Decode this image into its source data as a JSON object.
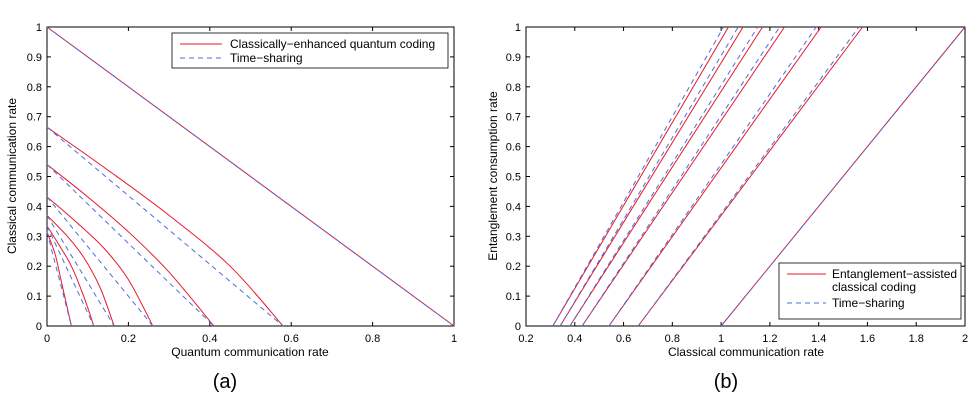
{
  "colors": {
    "series1": "#e8192c",
    "series2": "#4a6fd8",
    "axis": "#000000"
  },
  "chart_data": [
    {
      "type": "line",
      "caption": "(a)",
      "xlabel": "Quantum communication rate",
      "ylabel": "Classical communication rate",
      "xlim": [
        0,
        1
      ],
      "ylim": [
        0,
        1
      ],
      "xticks": [
        "0",
        "0.2",
        "0.4",
        "0.6",
        "0.8",
        "1"
      ],
      "yticks": [
        "0",
        "0.1",
        "0.2",
        "0.3",
        "0.4",
        "0.5",
        "0.6",
        "0.7",
        "0.8",
        "0.9",
        "1"
      ],
      "grid": false,
      "legend_position": "top-right",
      "series": [
        {
          "name": "Classically−enhanced quantum coding",
          "style": "solid",
          "curves": [
            [
              [
                0,
                1
              ],
              [
                1,
                0
              ]
            ],
            [
              [
                0,
                0.665
              ],
              [
                0.15,
                0.521
              ],
              [
                0.3,
                0.37
              ],
              [
                0.45,
                0.2
              ],
              [
                0.58,
                0
              ]
            ],
            [
              [
                0,
                0.54
              ],
              [
                0.1,
                0.432
              ],
              [
                0.2,
                0.315
              ],
              [
                0.3,
                0.18
              ],
              [
                0.41,
                0
              ]
            ],
            [
              [
                0,
                0.432
              ],
              [
                0.07,
                0.35
              ],
              [
                0.14,
                0.26
              ],
              [
                0.2,
                0.155
              ],
              [
                0.26,
                0
              ]
            ],
            [
              [
                0,
                0.37
              ],
              [
                0.05,
                0.3
              ],
              [
                0.09,
                0.23
              ],
              [
                0.13,
                0.13
              ],
              [
                0.165,
                0
              ]
            ],
            [
              [
                0,
                0.335
              ],
              [
                0.03,
                0.27
              ],
              [
                0.06,
                0.2
              ],
              [
                0.09,
                0.1
              ],
              [
                0.115,
                0
              ]
            ],
            [
              [
                0,
                0.315
              ],
              [
                0.02,
                0.24
              ],
              [
                0.035,
                0.15
              ],
              [
                0.05,
                0.06
              ],
              [
                0.06,
                0
              ]
            ]
          ]
        },
        {
          "name": "Time−sharing",
          "style": "dashed",
          "curves": [
            [
              [
                0,
                1
              ],
              [
                1,
                0
              ]
            ],
            [
              [
                0,
                0.665
              ],
              [
                0.58,
                0
              ]
            ],
            [
              [
                0,
                0.54
              ],
              [
                0.41,
                0
              ]
            ],
            [
              [
                0,
                0.432
              ],
              [
                0.26,
                0
              ]
            ],
            [
              [
                0,
                0.37
              ],
              [
                0.165,
                0
              ]
            ],
            [
              [
                0,
                0.335
              ],
              [
                0.115,
                0
              ]
            ],
            [
              [
                0,
                0.315
              ],
              [
                0.06,
                0
              ]
            ]
          ]
        }
      ]
    },
    {
      "type": "line",
      "caption": "(b)",
      "xlabel": "Classical communication rate",
      "ylabel": "Entanglement consumption rate",
      "xlim": [
        0.2,
        2
      ],
      "ylim": [
        0,
        1
      ],
      "xticks": [
        "0.2",
        "0.4",
        "0.6",
        "0.8",
        "1",
        "1.2",
        "1.4",
        "1.6",
        "1.8",
        "2"
      ],
      "yticks": [
        "0",
        "0.1",
        "0.2",
        "0.3",
        "0.4",
        "0.5",
        "0.6",
        "0.7",
        "0.8",
        "0.9",
        "1"
      ],
      "grid": false,
      "legend_position": "bottom-right",
      "series": [
        {
          "name": "Entanglement−assisted\nclassical coding",
          "style": "solid",
          "curves": [
            [
              [
                1,
                0
              ],
              [
                2,
                1
              ]
            ],
            [
              [
                0.66,
                0
              ],
              [
                1.58,
                1
              ]
            ],
            [
              [
                0.54,
                0
              ],
              [
                1.41,
                1
              ]
            ],
            [
              [
                0.43,
                0
              ],
              [
                1.26,
                1
              ]
            ],
            [
              [
                0.38,
                0
              ],
              [
                1.17,
                1
              ]
            ],
            [
              [
                0.34,
                0
              ],
              [
                1.09,
                1
              ]
            ],
            [
              [
                0.31,
                0
              ],
              [
                1.03,
                1
              ]
            ]
          ]
        },
        {
          "name": "Time−sharing",
          "style": "dashed",
          "curves": [
            [
              [
                1,
                0
              ],
              [
                2,
                1
              ]
            ],
            [
              [
                0.66,
                0
              ],
              [
                1.565,
                1
              ]
            ],
            [
              [
                0.54,
                0
              ],
              [
                1.39,
                1
              ]
            ],
            [
              [
                0.43,
                0
              ],
              [
                1.24,
                1
              ]
            ],
            [
              [
                0.38,
                0
              ],
              [
                1.15,
                1
              ]
            ],
            [
              [
                0.34,
                0
              ],
              [
                1.07,
                1
              ]
            ],
            [
              [
                0.31,
                0
              ],
              [
                1.01,
                1
              ]
            ]
          ]
        }
      ]
    }
  ]
}
